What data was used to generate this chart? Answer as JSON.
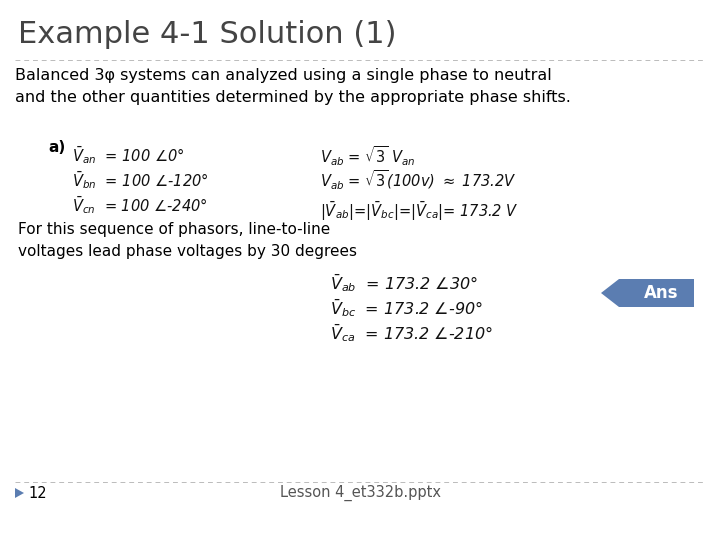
{
  "title": "Example 4-1 Solution (1)",
  "title_color": "#444444",
  "title_fontsize": 22,
  "bg_color": "#ffffff",
  "body_text": "Balanced 3φ systems can analyzed using a single phase to neutral\nand the other quantities determined by the appropriate phase shifts.",
  "body_fontsize": 11.5,
  "body_color": "#000000",
  "label_a": "a)",
  "label_a_fontsize": 11,
  "separator_color": "#bbbbbb",
  "footer_text": "For this sequence of phasors, line-to-line\nvoltages lead phase voltages by 30 degrees",
  "footer_fontsize": 11,
  "ans_label": "Ans",
  "ans_bg_color": "#5b7db1",
  "ans_text_color": "#ffffff",
  "page_num": "12",
  "footer_center": "Lesson 4_et332b.pptx",
  "triangle_color": "#5b7db1",
  "eq_color": "#111111",
  "eq_fontsize": 10.5
}
